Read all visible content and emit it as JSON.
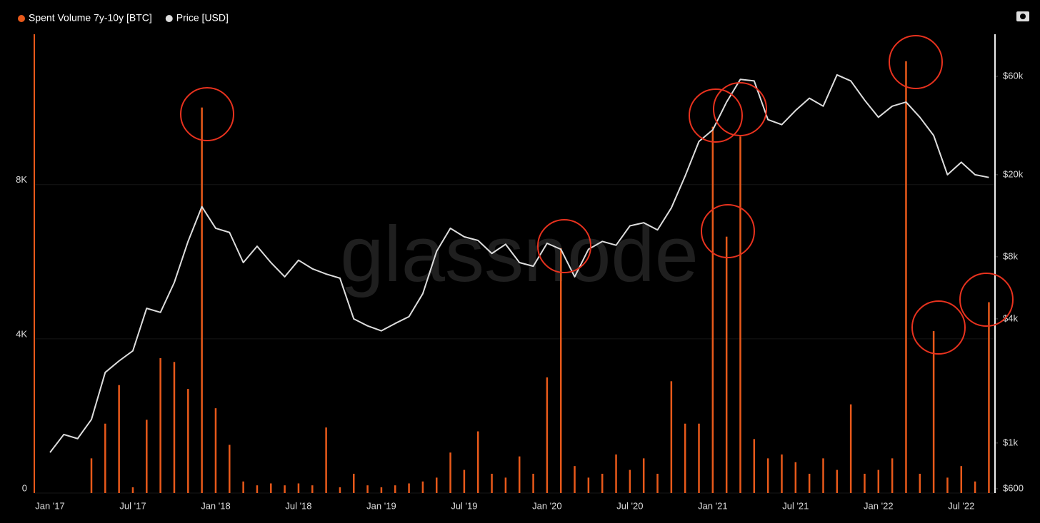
{
  "chart_data": {
    "type": "bar",
    "legend": "top-left",
    "watermark": "glassnode",
    "categories": [
      "Jan '17",
      null,
      null,
      null,
      null,
      null,
      "Jul '17",
      null,
      null,
      null,
      null,
      null,
      "Jan '18",
      null,
      null,
      null,
      null,
      null,
      "Jul '18",
      null,
      null,
      null,
      null,
      null,
      "Jan '19",
      null,
      null,
      null,
      null,
      null,
      "Jul '19",
      null,
      null,
      null,
      null,
      null,
      "Jan '20",
      null,
      null,
      null,
      null,
      null,
      "Jul '20",
      null,
      null,
      null,
      null,
      null,
      "Jan '21",
      null,
      null,
      null,
      null,
      null,
      "Jul '21",
      null,
      null,
      null,
      null,
      null,
      "Jan '22",
      null,
      null,
      null,
      null,
      null,
      "Jul '22",
      null,
      null
    ],
    "series": [
      {
        "name": "Spent Volume 7y-10y [BTC]",
        "type": "bar",
        "color": "#e8591a",
        "axis": "y",
        "values": [
          0,
          0,
          0,
          900,
          1800,
          2800,
          150,
          1900,
          3500,
          3400,
          2700,
          10000,
          2200,
          1250,
          300,
          200,
          250,
          200,
          250,
          200,
          1700,
          150,
          500,
          200,
          150,
          200,
          250,
          300,
          400,
          1050,
          600,
          1600,
          500,
          400,
          950,
          500,
          3000,
          6350,
          700,
          400,
          500,
          1000,
          600,
          900,
          500,
          2900,
          1800,
          1800,
          9500,
          6650,
          9250,
          1400,
          900,
          1000,
          800,
          500,
          900,
          600,
          2300,
          500,
          600,
          900,
          11200,
          500,
          4200,
          400,
          700,
          300,
          4950
        ]
      },
      {
        "name": "Price [USD]",
        "type": "line",
        "color": "#dddddd",
        "axis": "y2",
        "values": [
          900,
          1100,
          1050,
          1300,
          2200,
          2500,
          2800,
          4500,
          4300,
          6000,
          9500,
          14000,
          11000,
          10500,
          7500,
          9000,
          7500,
          6400,
          7700,
          7000,
          6600,
          6300,
          4000,
          3700,
          3500,
          3800,
          4100,
          5300,
          8500,
          11000,
          10000,
          9600,
          8300,
          9200,
          7500,
          7200,
          9300,
          8700,
          6400,
          8700,
          9500,
          9100,
          11300,
          11700,
          10800,
          13800,
          19700,
          29000,
          33000,
          45000,
          58000,
          57000,
          37000,
          35000,
          41000,
          47000,
          43000,
          61000,
          57000,
          46000,
          38000,
          43000,
          45000,
          38000,
          31000,
          20000,
          23000,
          20000,
          19400
        ]
      }
    ],
    "ylim": [
      0,
      11900
    ],
    "yticks": [
      0,
      {
        "value": 4000,
        "label": "4K"
      },
      {
        "value": 8000,
        "label": "8K"
      }
    ],
    "y2lim": [
      572,
      96000
    ],
    "y2scale": "log",
    "y2ticks": [
      {
        "value": 600,
        "label": "$600"
      },
      {
        "value": 1000,
        "label": "$1k"
      },
      {
        "value": 4000,
        "label": "$4k"
      },
      {
        "value": 8000,
        "label": "$8k"
      },
      {
        "value": 20000,
        "label": "$20k"
      },
      {
        "value": 60000,
        "label": "$60k"
      }
    ],
    "grid": true
  }
}
